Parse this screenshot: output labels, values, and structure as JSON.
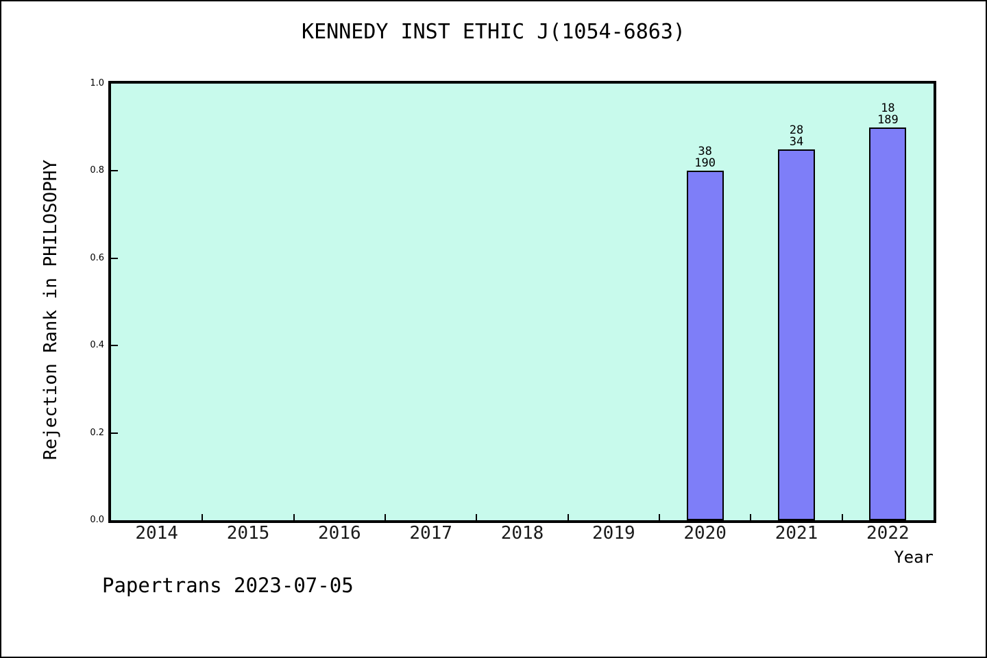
{
  "page": {
    "background": "#ffffff",
    "frame_border_color": "#000000"
  },
  "chart_data": {
    "type": "bar",
    "title": "KENNEDY INST ETHIC J(1054-6863)",
    "xlabel": "Year",
    "ylabel": "Rejection Rank in PHILOSOPHY",
    "categories": [
      "2014",
      "2015",
      "2016",
      "2017",
      "2018",
      "2019",
      "2020",
      "2021",
      "2022"
    ],
    "values": [
      null,
      null,
      null,
      null,
      null,
      null,
      0.8,
      0.85,
      0.9
    ],
    "bar_labels": [
      null,
      null,
      null,
      null,
      null,
      null,
      [
        "38",
        "190"
      ],
      [
        "28",
        "34"
      ],
      [
        "18",
        "189"
      ]
    ],
    "ylim": [
      0.0,
      1.0
    ],
    "yticks": [
      "0.0",
      "0.2",
      "0.4",
      "0.6",
      "0.8",
      "1.0"
    ],
    "grid": false,
    "legend": false,
    "plot_background": "#c8faec",
    "bar_color": "#7e7ef8",
    "bar_border_color": "#000000",
    "axis_color": "#000000"
  },
  "footer": {
    "text": "Papertrans 2023-07-05"
  }
}
